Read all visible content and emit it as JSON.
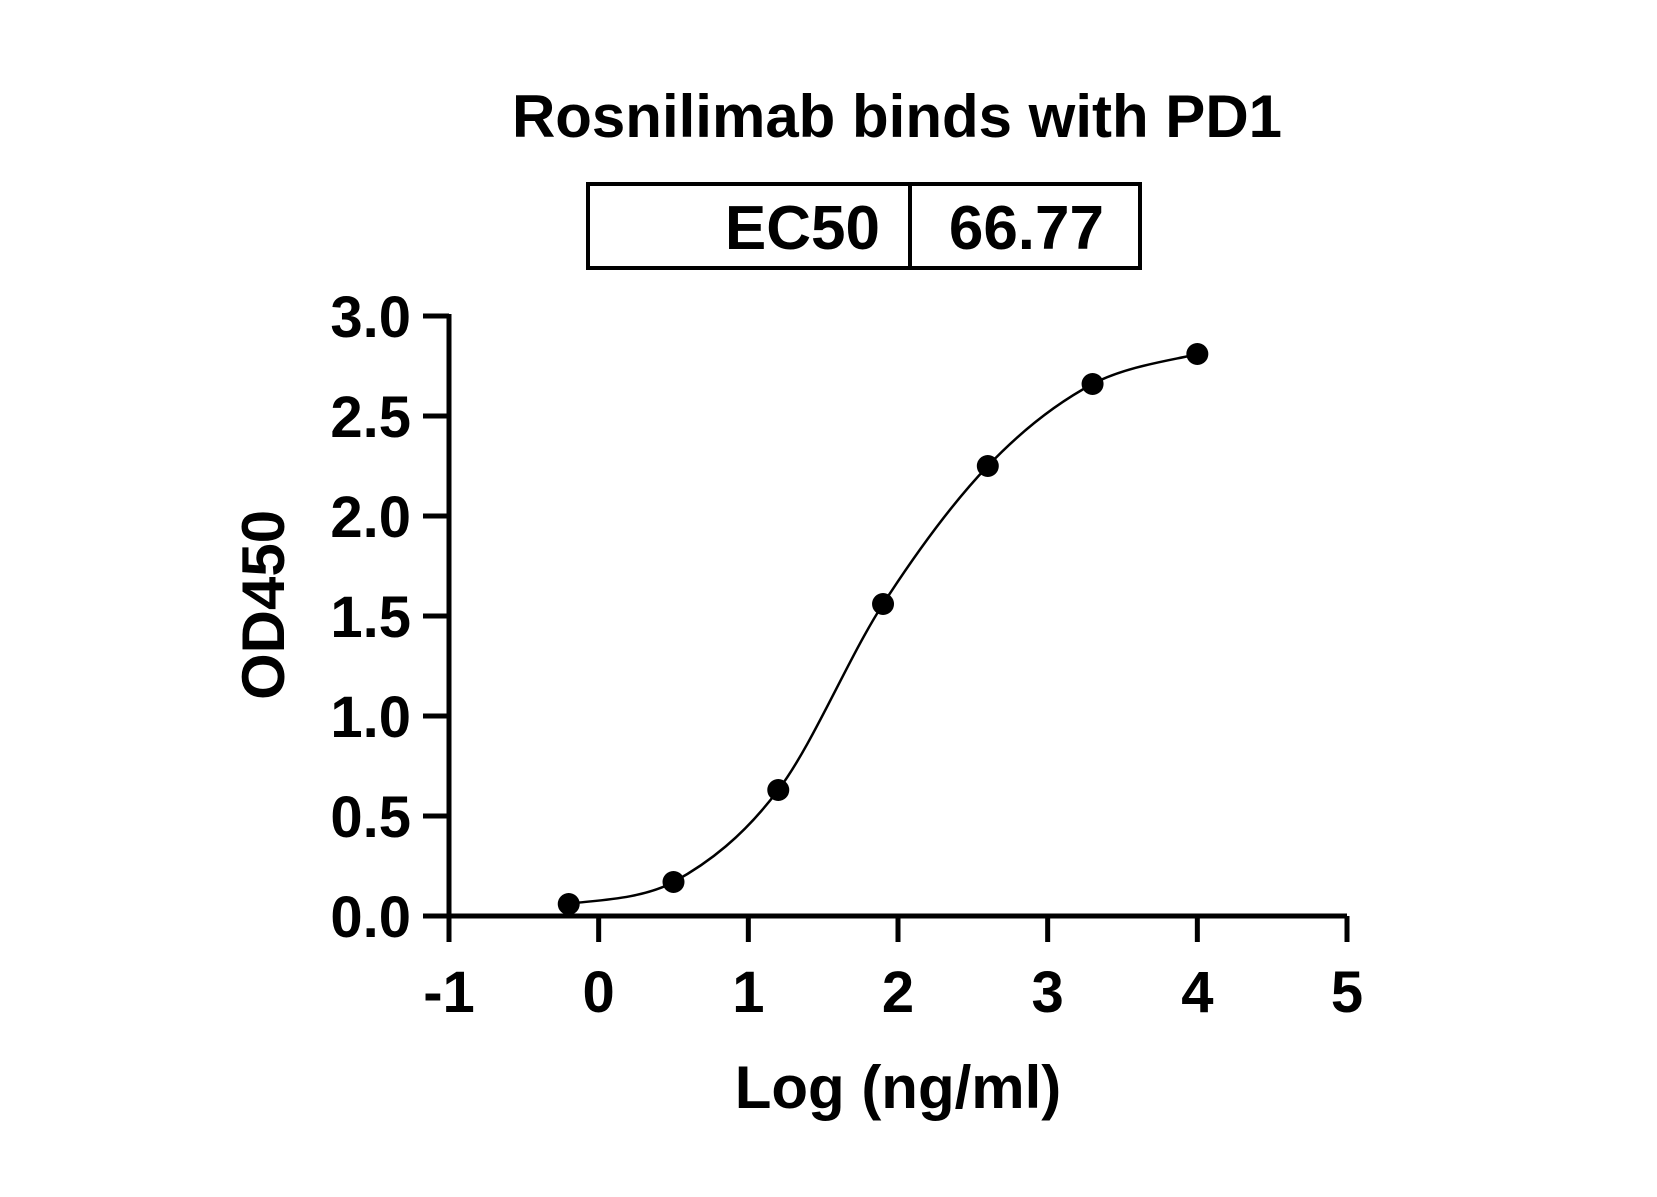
{
  "chart_data": {
    "type": "scatter",
    "title": "Rosnilimab binds with PD1",
    "xlabel": "Log (ng/ml)",
    "ylabel": "OD450",
    "xlim": [
      -1,
      5
    ],
    "ylim": [
      0,
      3.0
    ],
    "xticks": [
      "-1",
      "0",
      "1",
      "2",
      "3",
      "4",
      "5"
    ],
    "yticks": [
      "0.0",
      "0.5",
      "1.0",
      "1.5",
      "2.0",
      "2.5",
      "3.0"
    ],
    "grid": false,
    "ec50_table": {
      "label": "EC50",
      "value": "66.77"
    },
    "series": [
      {
        "x": [
          -0.2,
          0.5,
          1.2,
          1.9,
          2.6,
          3.3,
          4.0
        ],
        "y": [
          0.06,
          0.17,
          0.63,
          1.56,
          2.25,
          2.66,
          2.81
        ],
        "marker": "circle",
        "color": "#000000",
        "fit": "4PL sigmoidal curve"
      }
    ]
  }
}
